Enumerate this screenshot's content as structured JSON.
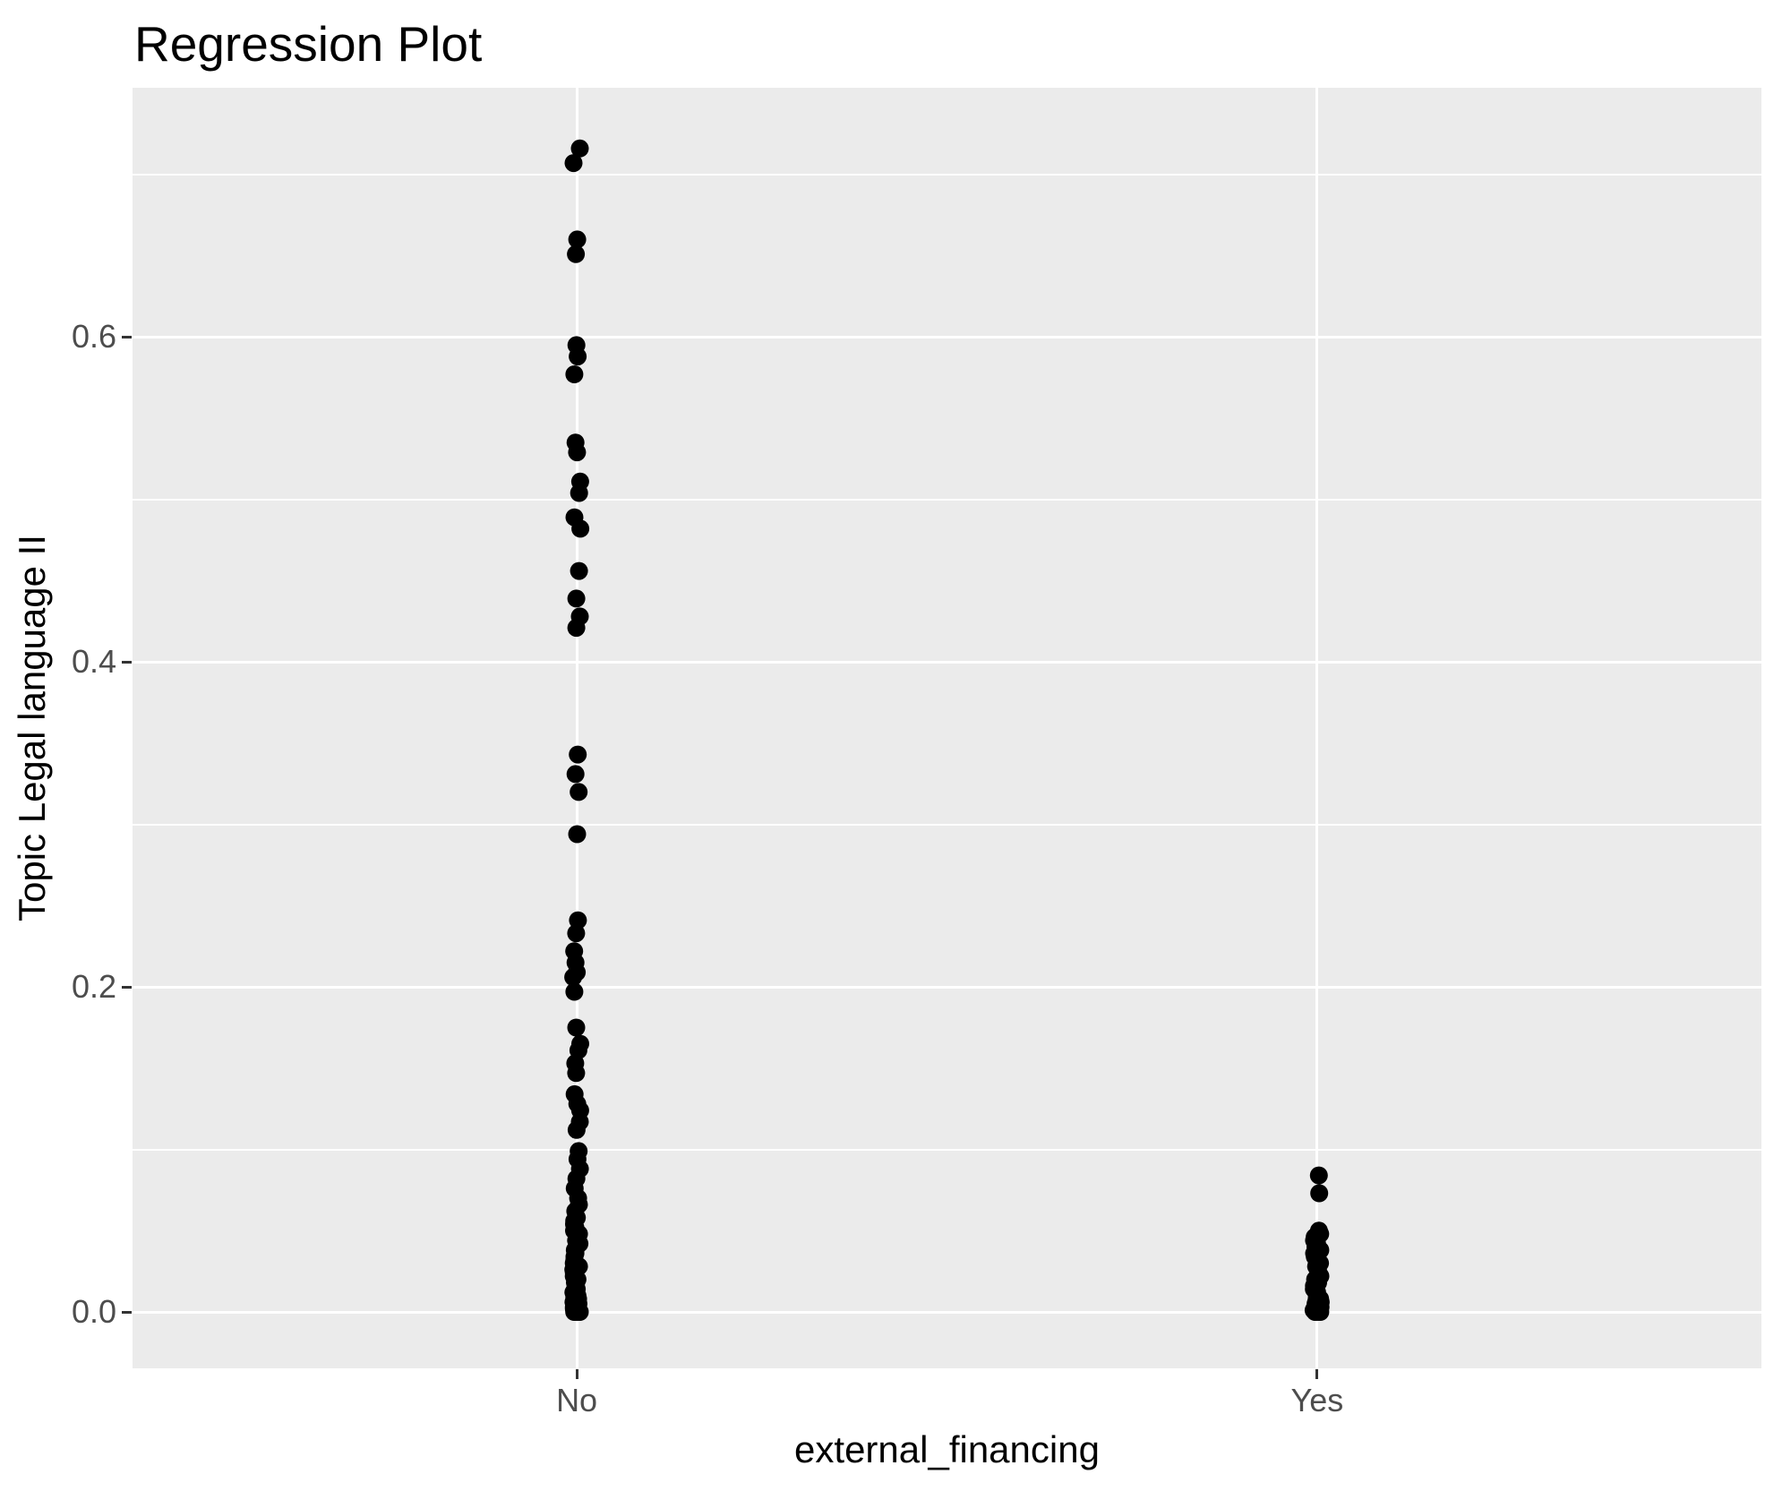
{
  "colors": {
    "panel_bg": "#EBEBEB",
    "grid": "#FFFFFF",
    "tick_text": "#4D4D4D",
    "tick_mark": "#333333",
    "axis_title": "#000000",
    "title": "#000000",
    "point": "#000000"
  },
  "chart_data": {
    "type": "scatter",
    "title": "Regression Plot",
    "xlabel": "external_financing",
    "ylabel": "Topic Legal language II",
    "categories": [
      "No",
      "Yes"
    ],
    "y_ticks": [
      0.0,
      0.2,
      0.4,
      0.6
    ],
    "y_tick_labels": [
      "0.0",
      "0.2",
      "0.4",
      "0.6"
    ],
    "y_minor_ticks": [
      0.1,
      0.3,
      0.5,
      0.7
    ],
    "ylim": [
      -0.036,
      0.753
    ],
    "grid": true,
    "legend_position": "none",
    "series": [
      {
        "name": "No",
        "values": [
          0.716,
          0.707,
          0.66,
          0.651,
          0.595,
          0.588,
          0.577,
          0.535,
          0.529,
          0.511,
          0.504,
          0.489,
          0.482,
          0.456,
          0.439,
          0.428,
          0.421,
          0.343,
          0.331,
          0.32,
          0.294,
          0.241,
          0.233,
          0.222,
          0.215,
          0.209,
          0.206,
          0.197,
          0.175,
          0.165,
          0.161,
          0.153,
          0.147,
          0.134,
          0.128,
          0.124,
          0.117,
          0.112,
          0.099,
          0.094,
          0.088,
          0.082,
          0.076,
          0.07,
          0.066,
          0.062,
          0.058,
          0.056,
          0.054,
          0.052,
          0.05,
          0.048,
          0.046,
          0.044,
          0.042,
          0.04,
          0.038,
          0.036,
          0.034,
          0.032,
          0.03,
          0.028,
          0.026,
          0.024,
          0.022,
          0.02,
          0.018,
          0.017,
          0.016,
          0.015,
          0.014,
          0.013,
          0.012,
          0.011,
          0.01,
          0.009,
          0.008,
          0.007,
          0.006,
          0.005,
          0.004,
          0.003,
          0.002,
          0.002,
          0.001,
          0.001,
          0.0,
          0.0,
          0.0,
          0.0,
          0.0,
          0.0
        ]
      },
      {
        "name": "Yes",
        "values": [
          0.084,
          0.073,
          0.05,
          0.048,
          0.046,
          0.044,
          0.042,
          0.04,
          0.038,
          0.036,
          0.034,
          0.032,
          0.03,
          0.028,
          0.026,
          0.024,
          0.022,
          0.02,
          0.018,
          0.016,
          0.014,
          0.012,
          0.01,
          0.009,
          0.008,
          0.007,
          0.006,
          0.005,
          0.004,
          0.003,
          0.002,
          0.001,
          0.0,
          0.0,
          0.0,
          0.0
        ]
      }
    ]
  }
}
